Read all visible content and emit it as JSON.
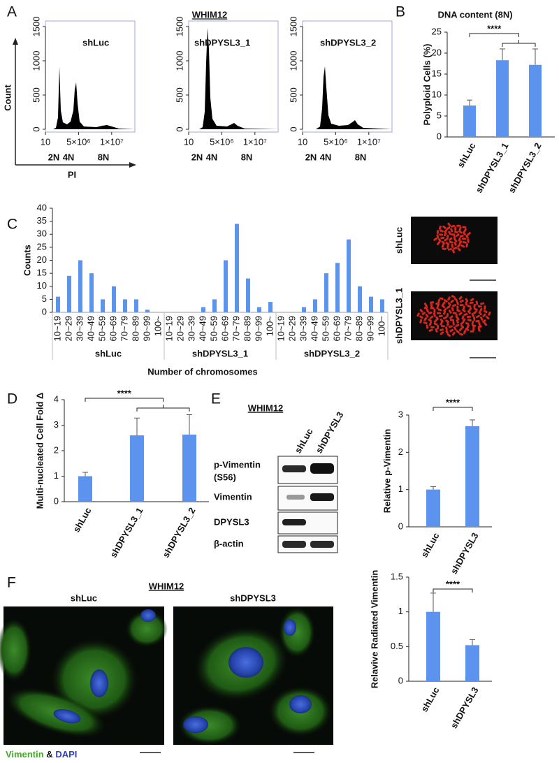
{
  "figure": {
    "panel_labels": [
      "A",
      "B",
      "C",
      "D",
      "E",
      "F"
    ],
    "panel_a_title": "WHIM12",
    "karyotype_labels": [
      "shLuc",
      "shDPYSL3_1"
    ],
    "blot": {
      "title": "WHIM12",
      "lanes": [
        "shLuc",
        "shDPYSL3"
      ],
      "rows": [
        {
          "label": "p-Vimentin",
          "sublabel": "(S56)"
        },
        {
          "label": "Vimentin"
        },
        {
          "label": "DPYSL3"
        },
        {
          "label": "β-actin"
        }
      ]
    },
    "microscopy": {
      "title": "WHIM12",
      "labels": [
        "shLuc",
        "shDPYSL3"
      ],
      "legend": [
        "Vimentin",
        "&",
        "DAPI"
      ]
    }
  },
  "chart_data": [
    {
      "type": "flow",
      "title": "shLuc",
      "ylabel": "Count",
      "xlabel": "PI",
      "xlim": [
        0,
        13500000
      ],
      "ylim": [
        0,
        1500
      ],
      "yticks": [
        0,
        500,
        1000,
        1500
      ],
      "xticks": [
        10,
        {
          "value": 5000000,
          "label": "5×10⁶"
        },
        {
          "value": 10000000,
          "label": "1×10⁷"
        }
      ],
      "peak_labels": [
        "2N",
        "4N",
        "8N"
      ]
    },
    {
      "type": "flow",
      "title": "shDPYSL3_1",
      "xlim": [
        0,
        13500000
      ],
      "ylim": [
        0,
        1500
      ],
      "yticks": [
        0,
        500,
        1000,
        1500
      ],
      "xticks": [
        10,
        {
          "value": 5000000,
          "label": "5×10⁶"
        },
        {
          "value": 10000000,
          "label": "1×10⁷"
        }
      ],
      "peak_labels": [
        "2N",
        "4N",
        "8N"
      ]
    },
    {
      "type": "flow",
      "title": "shDPYSL3_2",
      "xlim": [
        0,
        13500000
      ],
      "ylim": [
        0,
        1500
      ],
      "yticks": [
        0,
        500,
        1000,
        1500
      ],
      "xticks": [
        10,
        {
          "value": 5000000,
          "label": "5×10⁶"
        },
        {
          "value": 10000000,
          "label": "1×10⁷"
        }
      ],
      "peak_labels": [
        "2N",
        "4N",
        "8N"
      ]
    },
    {
      "type": "bar",
      "title": "DNA content (8N)",
      "ylabel": "Polyploid Cells (%)",
      "categories": [
        "shLuc",
        "shDPYSL3_1",
        "shDPYSL3_2"
      ],
      "values": [
        7.5,
        18.3,
        17.2
      ],
      "errors": [
        1.3,
        2.7,
        3.8
      ],
      "color": "#5b93ee",
      "ylim": [
        0,
        25
      ],
      "yticks": [
        0,
        5,
        10,
        15,
        20,
        25
      ],
      "annotation": "****"
    },
    {
      "type": "bar",
      "ylabel": "Counts",
      "xlabel": "Number of chromosomes",
      "categories": [
        "10~19",
        "20~29",
        "30~39",
        "40~49",
        "50~59",
        "60~69",
        "70~79",
        "80~89",
        "90~99",
        "100~"
      ],
      "groups": [
        {
          "name": "shLuc",
          "values": [
            6,
            14,
            20,
            15,
            5,
            10,
            5,
            5,
            1,
            0
          ]
        },
        {
          "name": "shDPYSL3_1",
          "values": [
            0,
            0,
            0,
            2,
            5,
            20,
            34,
            13,
            2,
            4
          ]
        },
        {
          "name": "shDPYSL3_2",
          "values": [
            0,
            0,
            2,
            5,
            15,
            19,
            28,
            10,
            6,
            5
          ]
        }
      ],
      "color": "#5b93ee",
      "ylim": [
        0,
        40
      ],
      "yticks": [
        0,
        5,
        10,
        15,
        20,
        25,
        30,
        35,
        40
      ]
    },
    {
      "type": "bar",
      "ylabel": "Multi-nucleated Cell Fold Δ",
      "categories": [
        "shLuc",
        "shDPYSL3_1",
        "shDPYSL3_2"
      ],
      "values": [
        1.0,
        2.6,
        2.63
      ],
      "errors": [
        0.15,
        0.68,
        0.78
      ],
      "color": "#5b93ee",
      "ylim": [
        0,
        4
      ],
      "yticks": [
        0,
        1,
        2,
        3,
        4
      ],
      "annotation": "****"
    },
    {
      "type": "bar",
      "ylabel": "Relative p-Vimentin",
      "categories": [
        "shLuc",
        "shDPYSL3"
      ],
      "values": [
        1.0,
        2.7
      ],
      "errors": [
        0.08,
        0.17
      ],
      "color": "#5b93ee",
      "ylim": [
        0,
        3
      ],
      "yticks": [
        0,
        1,
        2,
        3
      ],
      "annotation": "****"
    },
    {
      "type": "bar",
      "ylabel": "Relavive Radiated Vimentin",
      "categories": [
        "shLuc",
        "shDPYSL3"
      ],
      "values": [
        1.0,
        0.52
      ],
      "errors": [
        0.27,
        0.08
      ],
      "color": "#5b93ee",
      "ylim": [
        0,
        1.5
      ],
      "yticks": [
        0,
        0.5,
        1,
        1.5
      ],
      "annotation": "****"
    }
  ]
}
